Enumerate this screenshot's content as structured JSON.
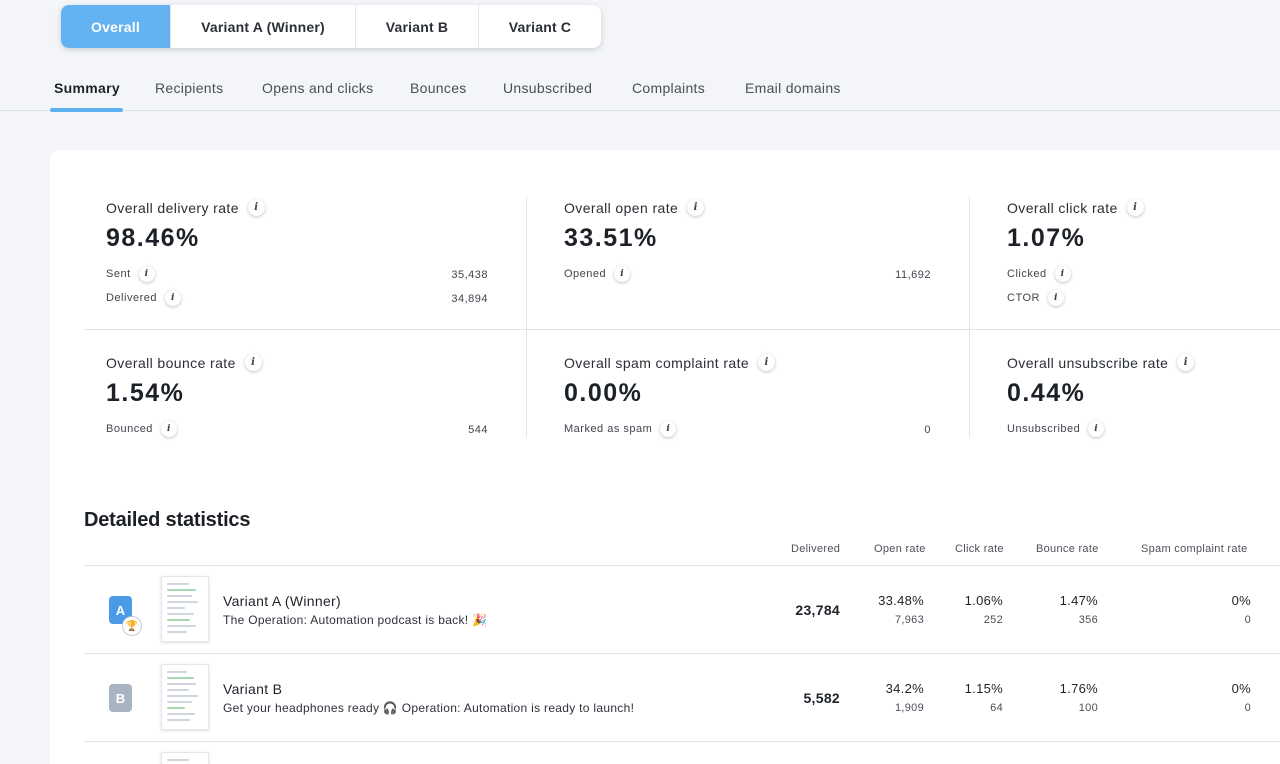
{
  "variant_tabs": [
    "Overall",
    "Variant A (Winner)",
    "Variant B",
    "Variant C"
  ],
  "subnav": [
    "Summary",
    "Recipients",
    "Opens and clicks",
    "Bounces",
    "Unsubscribed",
    "Complaints",
    "Email domains"
  ],
  "info_glyph": "i",
  "stats": {
    "delivery": {
      "title": "Overall delivery rate",
      "value": "98.46%",
      "sub1_label": "Sent",
      "sub1_value": "35,438",
      "sub2_label": "Delivered",
      "sub2_value": "34,894"
    },
    "open": {
      "title": "Overall open rate",
      "value": "33.51%",
      "sub1_label": "Opened",
      "sub1_value": "11,692"
    },
    "click": {
      "title": "Overall click rate",
      "value": "1.07%",
      "sub1_label": "Clicked",
      "sub2_label": "CTOR"
    },
    "bounce": {
      "title": "Overall bounce rate",
      "value": "1.54%",
      "sub1_label": "Bounced",
      "sub1_value": "544"
    },
    "spam": {
      "title": "Overall spam complaint rate",
      "value": "0.00%",
      "sub1_label": "Marked as spam",
      "sub1_value": "0"
    },
    "unsub": {
      "title": "Overall unsubscribe rate",
      "value": "0.44%",
      "sub1_label": "Unsubscribed"
    }
  },
  "detailed": {
    "title": "Detailed statistics",
    "columns": [
      "Delivered",
      "Open rate",
      "Click rate",
      "Bounce rate",
      "Spam complaint rate"
    ],
    "rows": [
      {
        "badge": "A",
        "badge_color": "#4a9ae8",
        "trophy_icon": "trophy-icon",
        "trophy_glyph": "🏆",
        "name": "Variant A (Winner)",
        "subject": "The Operation: Automation podcast is back! 🎉",
        "delivered": "23,784",
        "open_rate": "33.48%",
        "open_count": "7,963",
        "click_rate": "1.06%",
        "click_count": "252",
        "bounce_rate": "1.47%",
        "bounce_count": "356",
        "spam_rate": "0%",
        "spam_count": "0"
      },
      {
        "badge": "B",
        "badge_color": "#a9b4c2",
        "name": "Variant B",
        "subject": "Get your headphones ready 🎧 Operation: Automation is ready to launch!",
        "delivered": "5,582",
        "open_rate": "34.2%",
        "open_count": "1,909",
        "click_rate": "1.15%",
        "click_count": "64",
        "bounce_rate": "1.76%",
        "bounce_count": "100",
        "spam_rate": "0%",
        "spam_count": "0"
      }
    ]
  },
  "colors": {
    "accent": "#63b3f2",
    "underline": "#5db0ee",
    "background": "#f3f5f8",
    "card": "#ffffff"
  }
}
